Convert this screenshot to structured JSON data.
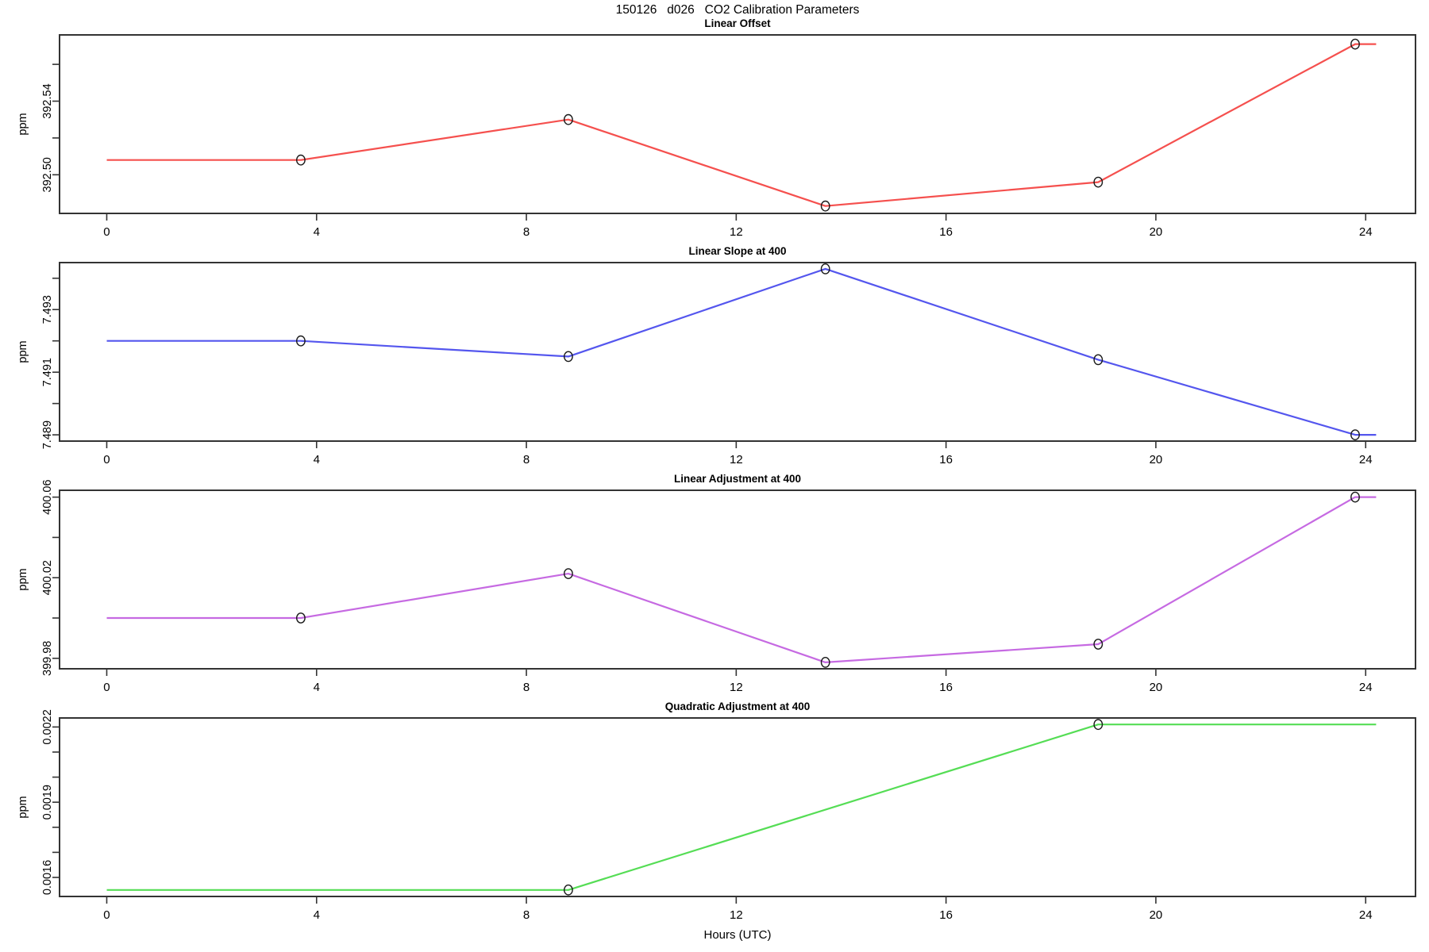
{
  "figure_title": "150126   d026   CO2 Calibration Parameters",
  "xlabel": "Hours (UTC)",
  "axis_color": "#333333",
  "marker_color": "#1a1a1a",
  "chart_data": [
    {
      "type": "line",
      "title": "Linear Offset",
      "ylabel": "ppm",
      "color": "#f5504e",
      "x": [
        0,
        3.7,
        8.8,
        13.7,
        18.9,
        23.8,
        24.2
      ],
      "y": [
        392.508,
        392.508,
        392.53,
        392.483,
        392.496,
        392.571,
        392.571
      ],
      "marker_indices": [
        1,
        2,
        3,
        4,
        5
      ],
      "xlim": [
        -0.9,
        24.95
      ],
      "ylim": [
        392.479,
        392.576
      ],
      "xticks": [
        0,
        4,
        8,
        12,
        16,
        20,
        24
      ],
      "yticks": [
        392.5,
        392.52,
        392.54,
        392.56
      ],
      "ytick_labels": [
        "392.50",
        "",
        "392.54",
        ""
      ]
    },
    {
      "type": "line",
      "title": "Linear Slope at 400",
      "ylabel": "ppm",
      "color": "#5456ee",
      "x": [
        0,
        3.7,
        8.8,
        13.7,
        18.9,
        23.8,
        24.2
      ],
      "y": [
        7.492,
        7.492,
        7.4915,
        7.4943,
        7.4914,
        7.489,
        7.489
      ],
      "marker_indices": [
        1,
        2,
        3,
        4,
        5
      ],
      "xlim": [
        -0.9,
        24.95
      ],
      "ylim": [
        7.4888,
        7.4945
      ],
      "xticks": [
        0,
        4,
        8,
        12,
        16,
        20,
        24
      ],
      "yticks": [
        7.489,
        7.49,
        7.491,
        7.492,
        7.493,
        7.494
      ],
      "ytick_labels": [
        "7.489",
        "",
        "7.491",
        "",
        "7.493",
        ""
      ]
    },
    {
      "type": "line",
      "title": "Linear Adjustment at 400",
      "ylabel": "ppm",
      "color": "#c66ae2",
      "x": [
        0,
        3.7,
        8.8,
        13.7,
        18.9,
        23.8,
        24.2
      ],
      "y": [
        400.0,
        400.0,
        400.022,
        399.978,
        399.987,
        400.06,
        400.06
      ],
      "marker_indices": [
        1,
        2,
        3,
        4,
        5
      ],
      "xlim": [
        -0.9,
        24.95
      ],
      "ylim": [
        399.9748,
        400.0634
      ],
      "xticks": [
        0,
        4,
        8,
        12,
        16,
        20,
        24
      ],
      "yticks": [
        399.98,
        400.0,
        400.02,
        400.04,
        400.06
      ],
      "ytick_labels": [
        "399.98",
        "",
        "400.02",
        "",
        "400.06"
      ]
    },
    {
      "type": "line",
      "title": "Quadratic Adjustment at 400",
      "ylabel": "ppm",
      "color": "#55dd55",
      "x": [
        0,
        8.8,
        18.9,
        24.2
      ],
      "y": [
        0.00155,
        0.00155,
        0.00221,
        0.00221
      ],
      "marker_indices": [
        1,
        2
      ],
      "xlim": [
        -0.9,
        24.95
      ],
      "ylim": [
        0.001524,
        0.002236
      ],
      "xticks": [
        0,
        4,
        8,
        12,
        16,
        20,
        24
      ],
      "yticks": [
        0.0016,
        0.0017,
        0.0018,
        0.0019,
        0.002,
        0.0021,
        0.0022
      ],
      "ytick_labels": [
        "0.0016",
        "",
        "",
        "0.0019",
        "",
        "",
        "0.0022"
      ]
    }
  ]
}
